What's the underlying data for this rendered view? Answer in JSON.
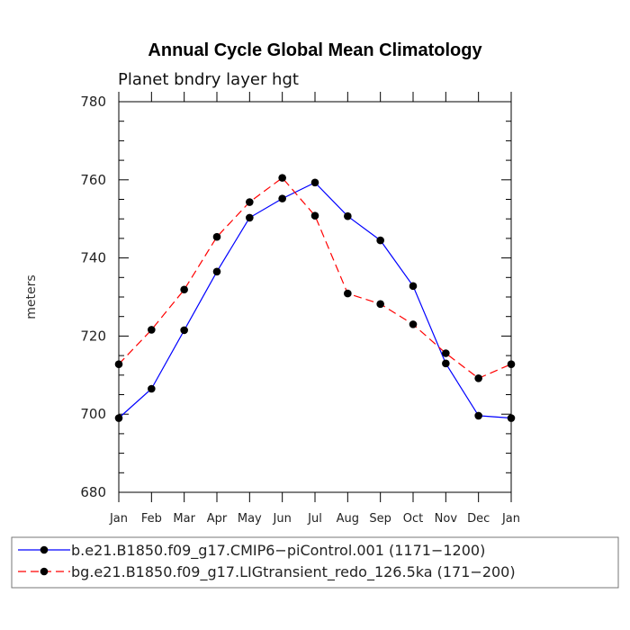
{
  "chart_data": {
    "type": "line",
    "title": "Annual Cycle Global Mean Climatology",
    "subtitle": "Planet bndry layer hgt",
    "xlabel": "",
    "ylabel": "meters",
    "ylim": [
      680,
      780
    ],
    "yticks": [
      680,
      700,
      720,
      740,
      760,
      780
    ],
    "grid": false,
    "legend_position": "bottom",
    "categories": [
      "Jan",
      "Feb",
      "Mar",
      "Apr",
      "May",
      "Jun",
      "Jul",
      "Aug",
      "Sep",
      "Oct",
      "Nov",
      "Dec",
      "Jan"
    ],
    "series": [
      {
        "name": "b.e21.B1850.f09_g17.CMIP6−piControl.001 (1171−1200)",
        "color": "#0000ff",
        "dash": "solid",
        "values": [
          699.0,
          706.5,
          721.5,
          736.5,
          750.3,
          755.2,
          759.3,
          750.7,
          744.5,
          732.8,
          713.0,
          699.6,
          699.0
        ]
      },
      {
        "name": "bg.e21.B1850.f09_g17.LIGtransient_redo_126.5ka (171−200)",
        "color": "#ff0000",
        "dash": "dashed",
        "values": [
          712.8,
          721.6,
          731.9,
          745.4,
          754.3,
          760.5,
          750.8,
          730.9,
          728.2,
          723.0,
          715.6,
          709.2,
          712.8
        ]
      }
    ]
  }
}
